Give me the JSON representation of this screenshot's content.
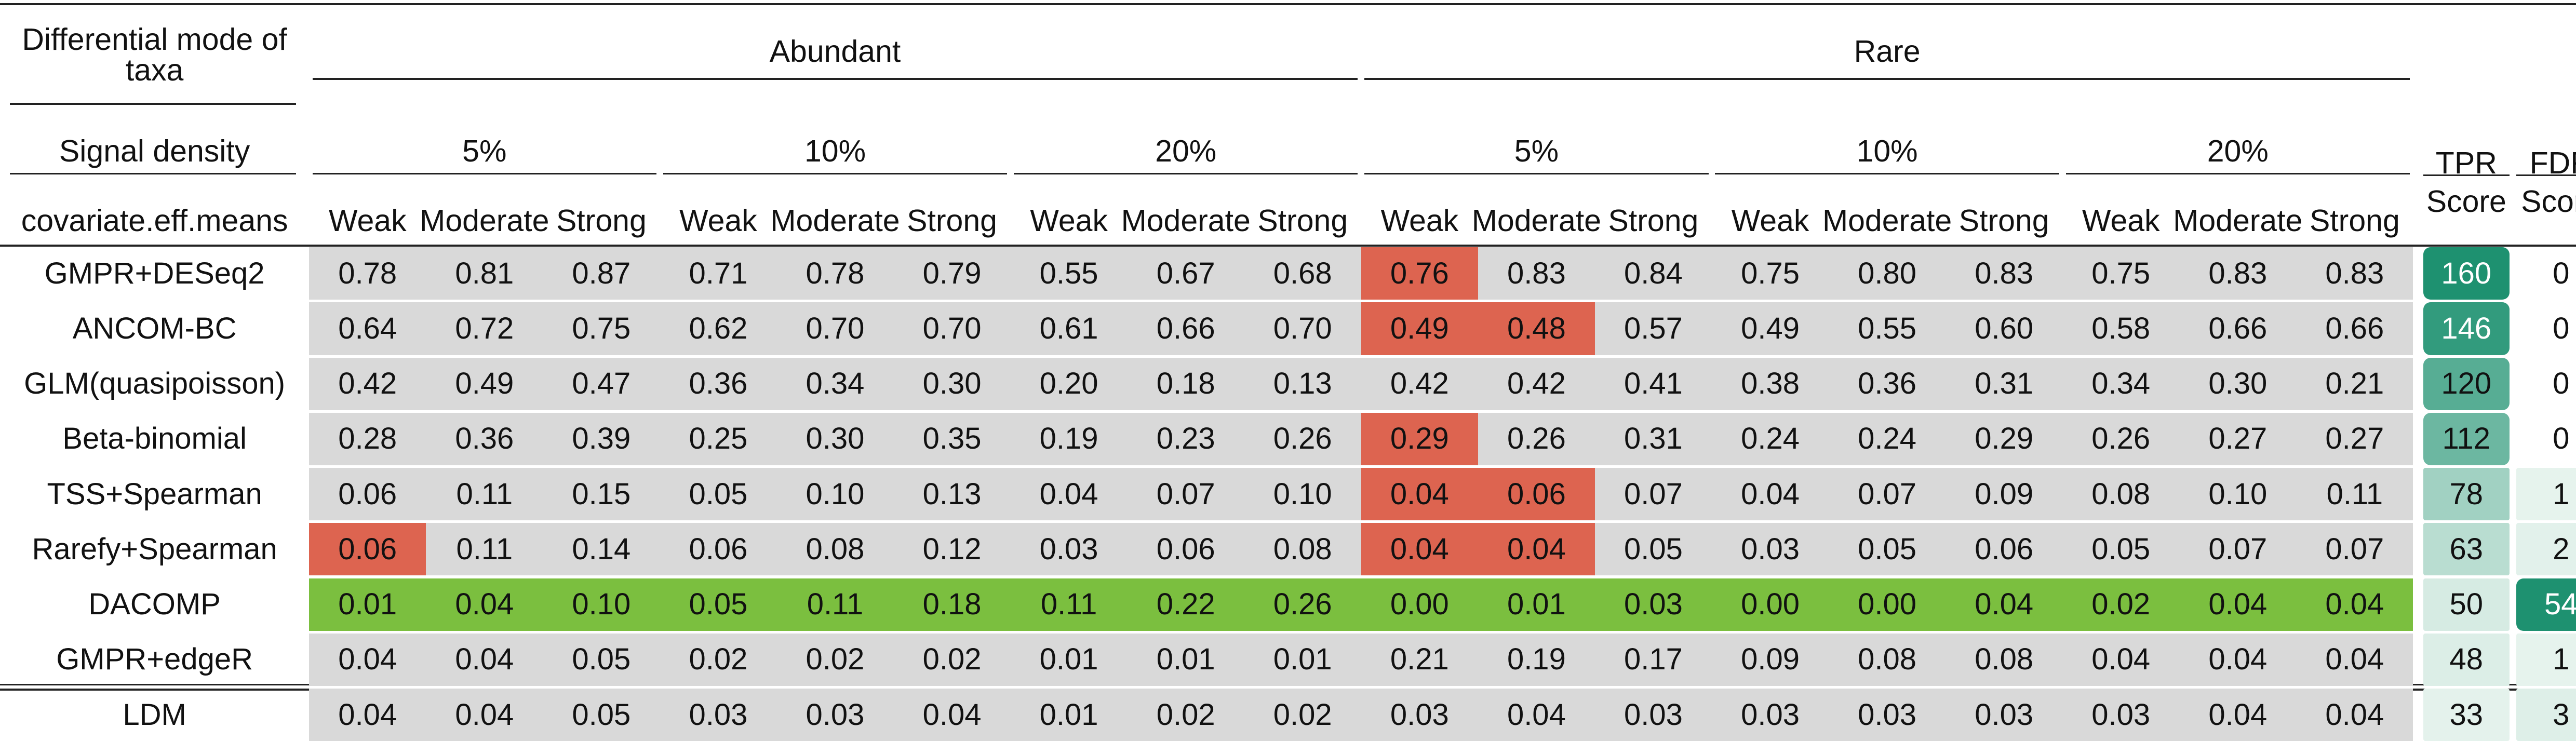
{
  "header": {
    "mode_label": "Differential mode of taxa",
    "density_label": "Signal density",
    "means_label": "covariate.eff.means",
    "groups": [
      "Abundant",
      "Rare"
    ],
    "densities": [
      "5%",
      "10%",
      "20%",
      "5%",
      "10%",
      "20%"
    ],
    "effects": [
      "Weak",
      "Moderate",
      "Strong"
    ],
    "tpr_label": "TPR Score",
    "fdr_label": "FDR Score"
  },
  "colors": {
    "grey": "#d9d9d9",
    "red": "#dd6450",
    "green": "#7bbf3f",
    "teal_dark": "#1e9170",
    "teal_light": "#eaf5f0"
  },
  "rows": [
    {
      "method": "GMPR+DESeq2",
      "values": [
        "0.78",
        "0.81",
        "0.87",
        "0.71",
        "0.78",
        "0.79",
        "0.55",
        "0.67",
        "0.68",
        "0.76",
        "0.83",
        "0.84",
        "0.75",
        "0.80",
        "0.83",
        "0.75",
        "0.83",
        "0.83"
      ],
      "tpr": "160",
      "fdr": "0"
    },
    {
      "method": "ANCOM-BC",
      "values": [
        "0.64",
        "0.72",
        "0.75",
        "0.62",
        "0.70",
        "0.70",
        "0.61",
        "0.66",
        "0.70",
        "0.49",
        "0.48",
        "0.57",
        "0.49",
        "0.55",
        "0.60",
        "0.58",
        "0.66",
        "0.66"
      ],
      "tpr": "146",
      "fdr": "0"
    },
    {
      "method": "GLM(quasipoisson)",
      "values": [
        "0.42",
        "0.49",
        "0.47",
        "0.36",
        "0.34",
        "0.30",
        "0.20",
        "0.18",
        "0.13",
        "0.42",
        "0.42",
        "0.41",
        "0.38",
        "0.36",
        "0.31",
        "0.34",
        "0.30",
        "0.21"
      ],
      "tpr": "120",
      "fdr": "0"
    },
    {
      "method": "Beta-binomial",
      "values": [
        "0.28",
        "0.36",
        "0.39",
        "0.25",
        "0.30",
        "0.35",
        "0.19",
        "0.23",
        "0.26",
        "0.29",
        "0.26",
        "0.31",
        "0.24",
        "0.24",
        "0.29",
        "0.26",
        "0.27",
        "0.27"
      ],
      "tpr": "112",
      "fdr": "0"
    },
    {
      "method": "TSS+Spearman",
      "values": [
        "0.06",
        "0.11",
        "0.15",
        "0.05",
        "0.10",
        "0.13",
        "0.04",
        "0.07",
        "0.10",
        "0.04",
        "0.06",
        "0.07",
        "0.04",
        "0.07",
        "0.09",
        "0.08",
        "0.10",
        "0.11"
      ],
      "tpr": "78",
      "fdr": "1"
    },
    {
      "method": "Rarefy+Spearman",
      "values": [
        "0.06",
        "0.11",
        "0.14",
        "0.06",
        "0.08",
        "0.12",
        "0.03",
        "0.06",
        "0.08",
        "0.04",
        "0.04",
        "0.05",
        "0.03",
        "0.05",
        "0.06",
        "0.05",
        "0.07",
        "0.07"
      ],
      "tpr": "63",
      "fdr": "2"
    },
    {
      "method": "DACOMP",
      "values": [
        "0.01",
        "0.04",
        "0.10",
        "0.05",
        "0.11",
        "0.18",
        "0.11",
        "0.22",
        "0.26",
        "0.00",
        "0.01",
        "0.03",
        "0.00",
        "0.00",
        "0.04",
        "0.02",
        "0.04",
        "0.04"
      ],
      "tpr": "50",
      "fdr": "54"
    },
    {
      "method": "GMPR+edgeR",
      "values": [
        "0.04",
        "0.04",
        "0.05",
        "0.02",
        "0.02",
        "0.02",
        "0.01",
        "0.01",
        "0.01",
        "0.21",
        "0.19",
        "0.17",
        "0.09",
        "0.08",
        "0.08",
        "0.04",
        "0.04",
        "0.04"
      ],
      "tpr": "48",
      "fdr": "1"
    },
    {
      "method": "LDM",
      "values": [
        "0.04",
        "0.04",
        "0.05",
        "0.03",
        "0.03",
        "0.04",
        "0.01",
        "0.02",
        "0.02",
        "0.03",
        "0.04",
        "0.03",
        "0.03",
        "0.03",
        "0.03",
        "0.03",
        "0.04",
        "0.04"
      ],
      "tpr": "33",
      "fdr": "3"
    }
  ],
  "highlights": {
    "red_cells": [
      [
        0,
        9
      ],
      [
        1,
        9
      ],
      [
        1,
        10
      ],
      [
        3,
        9
      ],
      [
        4,
        9
      ],
      [
        4,
        10
      ],
      [
        5,
        0
      ],
      [
        5,
        9
      ],
      [
        5,
        10
      ]
    ],
    "green_row": 6,
    "tpr_levels": [
      1.0,
      0.9,
      0.72,
      0.62,
      0.36,
      0.24,
      0.1,
      0.07,
      0.03
    ],
    "fdr_levels": [
      0,
      0,
      0,
      0,
      0.02,
      0.04,
      1.0,
      0.02,
      0.06
    ]
  }
}
